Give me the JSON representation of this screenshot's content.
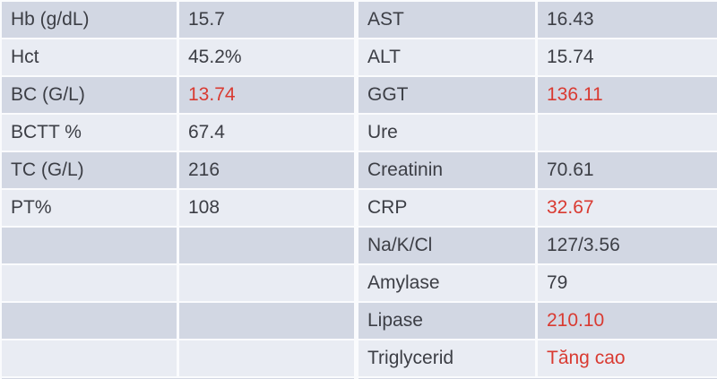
{
  "theme": {
    "background": "#ffffff",
    "band_dark": "#d2d7e3",
    "band_light": "#e9ecf3",
    "separator": "#fafbfd",
    "text_color": "#3c3e45",
    "alert_color": "#d93a31"
  },
  "tables": {
    "left": {
      "rows": [
        {
          "label": "Hb (g/dL)",
          "value": "15.7",
          "alert": false
        },
        {
          "label": "Hct",
          "value": "45.2%",
          "alert": false
        },
        {
          "label": "BC (G/L)",
          "value": "13.74",
          "alert": true
        },
        {
          "label": "BCTT %",
          "value": "67.4",
          "alert": false
        },
        {
          "label": "TC (G/L)",
          "value": "216",
          "alert": false
        },
        {
          "label": "PT%",
          "value": "108",
          "alert": false
        },
        {
          "label": "",
          "value": "",
          "alert": false
        },
        {
          "label": "",
          "value": "",
          "alert": false
        },
        {
          "label": "",
          "value": "",
          "alert": false
        },
        {
          "label": "",
          "value": "",
          "alert": false
        }
      ]
    },
    "right": {
      "rows": [
        {
          "label": "AST",
          "value": "16.43",
          "alert": false
        },
        {
          "label": "ALT",
          "value": "15.74",
          "alert": false
        },
        {
          "label": "GGT",
          "value": "136.11",
          "alert": true
        },
        {
          "label": "Ure",
          "value": "",
          "alert": false
        },
        {
          "label": "Creatinin",
          "value": "70.61",
          "alert": false
        },
        {
          "label": "CRP",
          "value": "32.67",
          "alert": true
        },
        {
          "label": "Na/K/Cl",
          "value": "127/3.56",
          "alert": false
        },
        {
          "label": "Amylase",
          "value": "79",
          "alert": false
        },
        {
          "label": "Lipase",
          "value": "210.10",
          "alert": true
        },
        {
          "label": "Triglycerid",
          "value": "Tăng cao",
          "alert": true
        }
      ]
    }
  }
}
